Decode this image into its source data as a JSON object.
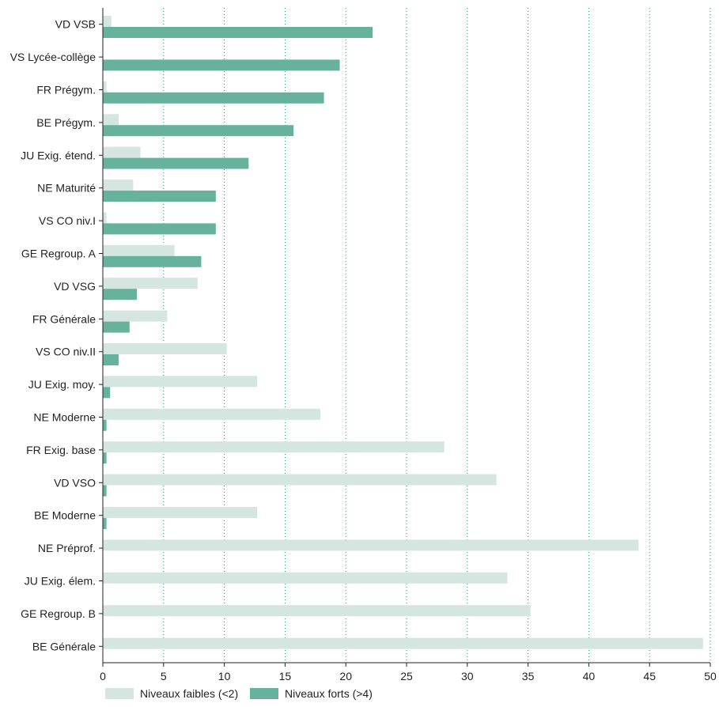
{
  "chart_data": {
    "type": "bar",
    "orientation": "horizontal",
    "categories": [
      "VD VSB",
      "VS Lycée-collège",
      "FR Prégym.",
      "BE Prégym.",
      "JU Exig. étend.",
      "NE Maturité",
      "VS CO niv.I",
      "GE Regroup. A",
      "VD VSG",
      "FR Générale",
      "VS CO niv.II",
      "JU Exig. moy.",
      "NE Moderne",
      "FR Exig. base",
      "VD VSO",
      "BE Moderne",
      "NE Préprof.",
      "JU Exig. élem.",
      "GE Regroup. B",
      "BE Générale"
    ],
    "series": [
      {
        "name": "Niveaux faibles (<2)",
        "color": "#d4e6df",
        "values": [
          0.7,
          0,
          0.3,
          1.3,
          3.1,
          2.5,
          0.3,
          5.9,
          7.8,
          5.3,
          10.2,
          12.7,
          17.9,
          28.1,
          32.4,
          12.7,
          44.1,
          33.3,
          35.2,
          49.4
        ]
      },
      {
        "name": "Niveaux forts (>4)",
        "color": "#66b29c",
        "values": [
          22.2,
          19.5,
          18.2,
          15.7,
          12.0,
          9.3,
          9.3,
          8.1,
          2.8,
          2.2,
          1.3,
          0.6,
          0.3,
          0.3,
          0.3,
          0.3,
          0,
          0,
          0,
          0
        ]
      }
    ],
    "xlim": [
      0,
      50
    ],
    "xticks": [
      0,
      5,
      10,
      15,
      20,
      25,
      30,
      35,
      40,
      45,
      50
    ],
    "grid": "vertical-dotted",
    "grid_color": "#2a8f7a",
    "legend_position": "bottom-left",
    "title": "",
    "xlabel": "",
    "ylabel": ""
  }
}
